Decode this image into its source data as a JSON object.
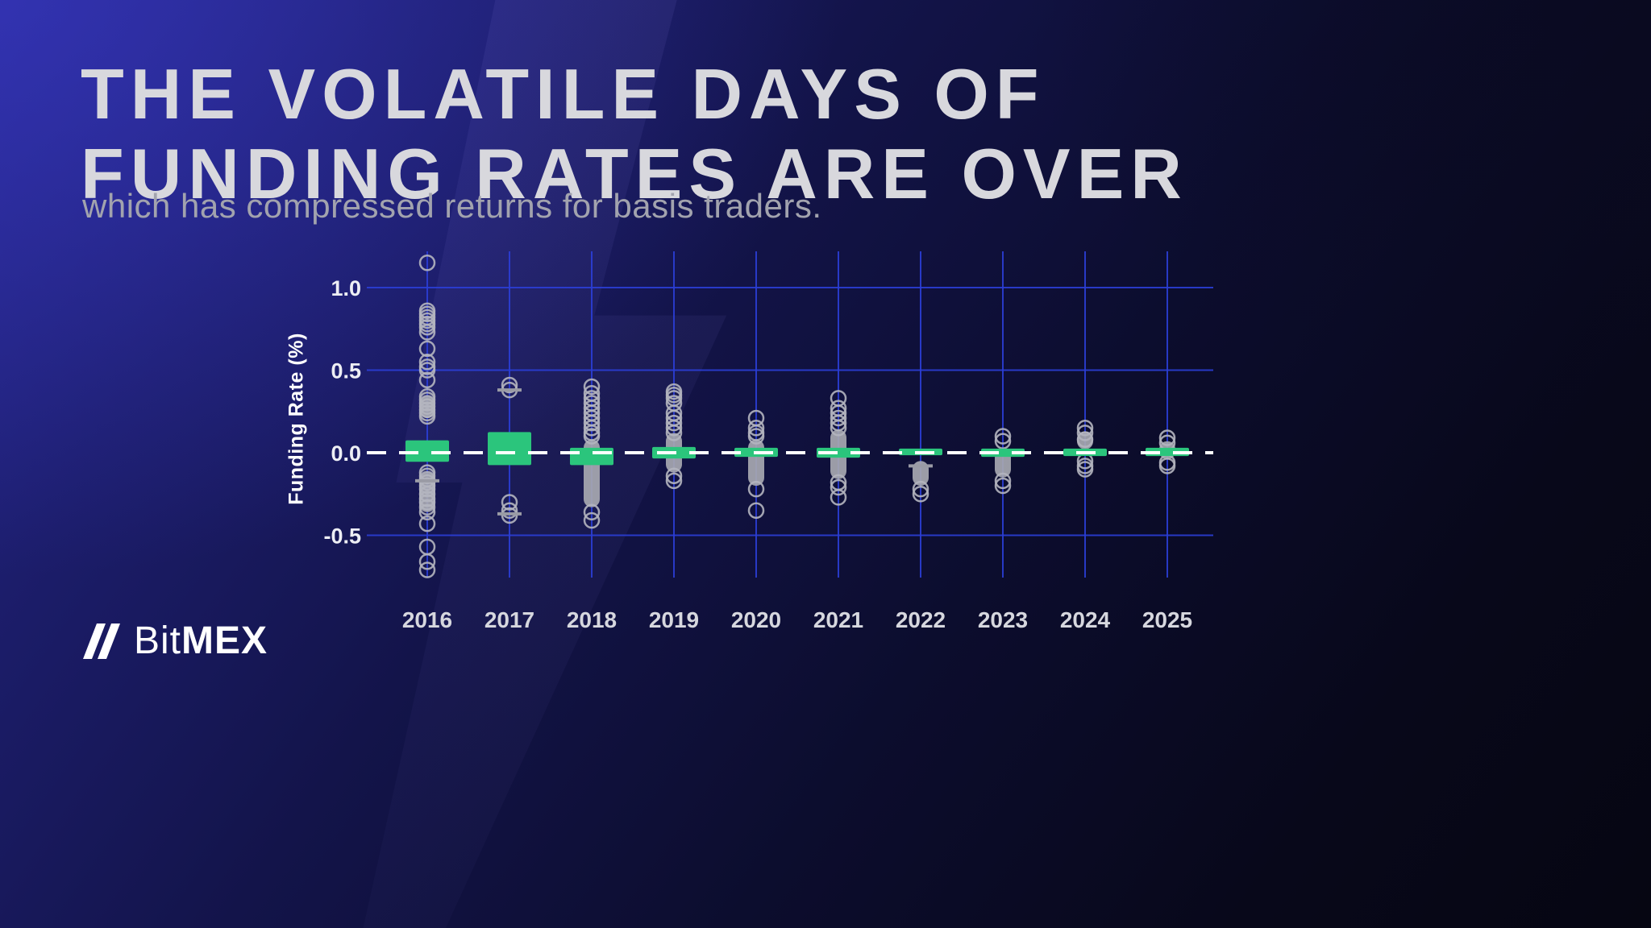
{
  "header": {
    "title_line1": "THE VOLATILE DAYS OF",
    "title_line2": "FUNDING RATES ARE OVER",
    "subtitle": "which has compressed returns for basis traders."
  },
  "logo": {
    "bit": "Bit",
    "mex": "MEX"
  },
  "colors": {
    "box_green": "#2bc57c",
    "grid_blue": "#2b3ed6",
    "outlier_gray": "#b4b5bf",
    "title_gray": "#d8d8dd",
    "background_navy": "#0c0d2e"
  },
  "chart_data": {
    "type": "boxplot",
    "title": "",
    "xlabel": "",
    "ylabel": "Funding Rate (%)",
    "yticks": [
      1.0,
      0.5,
      0.0,
      -0.5
    ],
    "ylim": [
      -0.85,
      1.2
    ],
    "grid": true,
    "zero_line": "white-dashed",
    "categories": [
      "2016",
      "2017",
      "2018",
      "2019",
      "2020",
      "2021",
      "2022",
      "2023",
      "2024",
      "2025"
    ],
    "series": [
      {
        "year": "2016",
        "box": [
          -0.055,
          0.075
        ],
        "bands": [
          [
            0.21,
            0.34
          ],
          [
            -0.36,
            -0.12
          ]
        ],
        "outliers": [
          1.15,
          0.86,
          0.84,
          0.82,
          0.8,
          0.78,
          0.76,
          0.73,
          0.63,
          0.55,
          0.52,
          0.5,
          0.44,
          0.34,
          0.32,
          0.3,
          0.28,
          0.26,
          0.24,
          0.22,
          -0.12,
          -0.14,
          -0.16,
          -0.18,
          -0.2,
          -0.22,
          -0.25,
          -0.28,
          -0.3,
          -0.33,
          -0.36,
          -0.43,
          -0.57,
          -0.66,
          -0.71
        ],
        "caps": [
          -0.17
        ]
      },
      {
        "year": "2017",
        "box": [
          -0.075,
          0.125
        ],
        "bands": [],
        "outliers": [
          0.41,
          0.38,
          -0.3,
          -0.35,
          -0.38
        ],
        "caps": [
          0.38,
          -0.37
        ]
      },
      {
        "year": "2018",
        "box": [
          -0.075,
          0.03
        ],
        "bands": [
          [
            -0.33,
            0.08
          ]
        ],
        "outliers": [
          0.4,
          0.36,
          0.33,
          0.3,
          0.27,
          0.24,
          0.21,
          0.18,
          0.15,
          0.12,
          0.1,
          -0.36,
          -0.41
        ],
        "caps": []
      },
      {
        "year": "2019",
        "box": [
          -0.035,
          0.035
        ],
        "bands": [
          [
            -0.12,
            0.12
          ]
        ],
        "outliers": [
          0.37,
          0.35,
          0.33,
          0.3,
          0.24,
          0.21,
          0.18,
          0.15,
          0.12,
          -0.14,
          -0.17
        ],
        "caps": []
      },
      {
        "year": "2020",
        "box": [
          -0.025,
          0.03
        ],
        "bands": [
          [
            -0.2,
            0.08
          ]
        ],
        "outliers": [
          0.21,
          0.15,
          0.12,
          0.1,
          -0.22,
          -0.35
        ],
        "caps": []
      },
      {
        "year": "2021",
        "box": [
          -0.03,
          0.03
        ],
        "bands": [
          [
            -0.16,
            0.14
          ]
        ],
        "outliers": [
          0.33,
          0.27,
          0.24,
          0.21,
          0.18,
          0.15,
          -0.18,
          -0.21,
          -0.27
        ],
        "caps": []
      },
      {
        "year": "2022",
        "box": [
          -0.015,
          0.025
        ],
        "bands": [
          [
            -0.2,
            -0.05
          ]
        ],
        "outliers": [
          -0.22,
          -0.25
        ],
        "caps": [
          -0.08
        ]
      },
      {
        "year": "2023",
        "box": [
          -0.025,
          0.025
        ],
        "bands": [
          [
            -0.15,
            0.02
          ]
        ],
        "outliers": [
          0.1,
          0.07,
          -0.17,
          -0.2
        ],
        "caps": []
      },
      {
        "year": "2024",
        "box": [
          -0.02,
          0.025
        ],
        "bands": [
          [
            0.02,
            0.13
          ]
        ],
        "outliers": [
          0.15,
          0.12,
          0.08,
          -0.05,
          -0.08,
          -0.1
        ],
        "caps": []
      },
      {
        "year": "2025",
        "box": [
          -0.02,
          0.03
        ],
        "bands": [
          [
            -0.04,
            0.07
          ]
        ],
        "outliers": [
          0.09,
          0.06,
          -0.06,
          -0.08
        ],
        "caps": []
      }
    ]
  }
}
